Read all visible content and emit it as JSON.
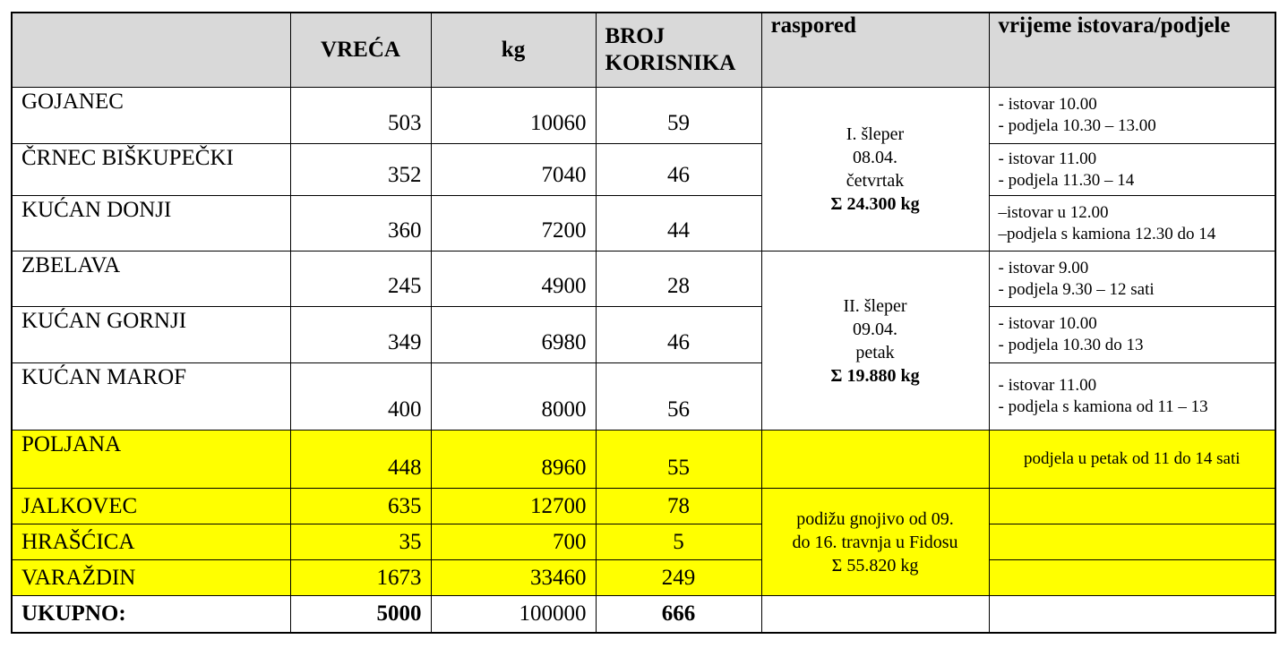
{
  "header": {
    "cells": [
      "VREĆA",
      "kg",
      "BROJ KORISNIKA",
      "raspored",
      "vrijeme istovara/podjele"
    ]
  },
  "rows": [
    {
      "name": "GOJANEC",
      "vreca": "503",
      "kg": "10060",
      "korisnici": "59",
      "vrijeme": [
        "- istovar 10.00",
        "- podjela 10.30 – 13.00"
      ]
    },
    {
      "name": "ČRNEC BIŠKUPEČKI",
      "vreca": "352",
      "kg": "7040",
      "korisnici": "46",
      "vrijeme": [
        "- istovar 11.00",
        "- podjela 11.30 – 14"
      ]
    },
    {
      "name": "KUĆAN DONJI",
      "vreca": "360",
      "kg": "7200",
      "korisnici": "44",
      "vrijeme": [
        "–istovar u 12.00",
        "–podjela s kamiona 12.30 do 14"
      ]
    },
    {
      "name": "ZBELAVA",
      "vreca": "245",
      "kg": "4900",
      "korisnici": "28",
      "vrijeme": [
        "- istovar 9.00",
        "- podjela 9.30 – 12 sati"
      ]
    },
    {
      "name": "KUĆAN GORNJI",
      "vreca": "349",
      "kg": "6980",
      "korisnici": "46",
      "vrijeme": [
        "- istovar 10.00",
        "- podjela 10.30 do 13"
      ]
    },
    {
      "name": "KUĆAN MAROF",
      "vreca": "400",
      "kg": "8000",
      "korisnici": "56",
      "vrijeme": [
        "- istovar 11.00",
        "- podjela s kamiona od 11 – 13"
      ]
    },
    {
      "name": "POLJANA",
      "vreca": "448",
      "kg": "8960",
      "korisnici": "55",
      "vrijeme": [
        "podjela u petak od 11 do 14 sati"
      ]
    },
    {
      "name": "JALKOVEC",
      "vreca": "635",
      "kg": "12700",
      "korisnici": "78"
    },
    {
      "name": "HRAŠĆICA",
      "vreca": "35",
      "kg": "700",
      "korisnici": "5"
    },
    {
      "name": "VARAŽDIN",
      "vreca": "1673",
      "kg": "33460",
      "korisnici": "249"
    }
  ],
  "raspored": [
    {
      "lines": [
        "I. šleper",
        "08.04.",
        "četvrtak",
        "Σ 24.300 kg"
      ]
    },
    {
      "lines": [
        "II. šleper",
        "09.04.",
        "petak",
        "Σ 19.880 kg"
      ]
    },
    {
      "lines": [
        "podižu gnojivo od 09.",
        "do 16. travnja u Fidosu",
        "Σ 55.820 kg"
      ]
    }
  ],
  "total": {
    "name": "UKUPNO:",
    "vreca": "5000",
    "kg": "100000",
    "korisnici": "666"
  }
}
